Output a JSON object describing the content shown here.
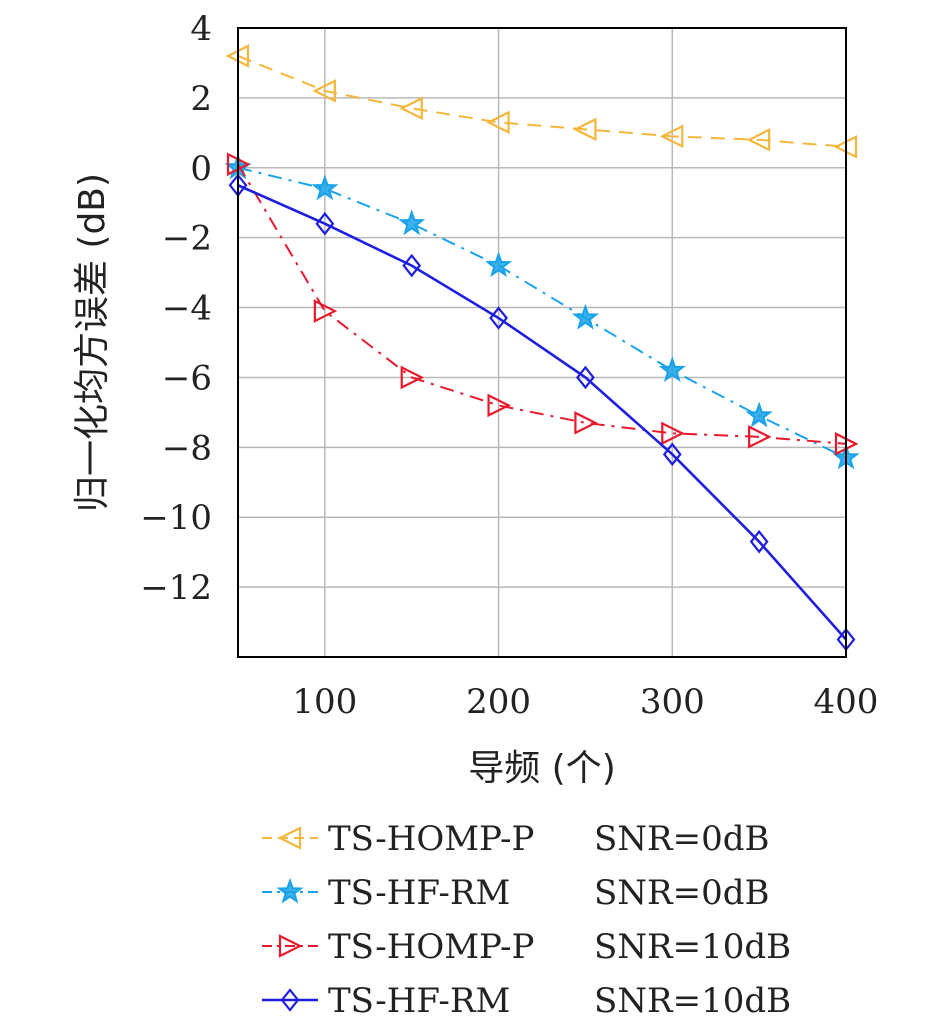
{
  "chart_data": {
    "type": "line",
    "xlabel": "导频 (个)",
    "ylabel": "归一化均方误差 (dB)",
    "xlim": [
      50,
      400
    ],
    "ylim": [
      -14,
      4
    ],
    "xticks": [
      100,
      200,
      300,
      400
    ],
    "yticks": [
      4,
      2,
      0,
      -2,
      -4,
      -6,
      -8,
      -10,
      -12
    ],
    "grid": true,
    "legend_placement": "below",
    "x": [
      50,
      100,
      150,
      200,
      250,
      300,
      350,
      400
    ],
    "series": [
      {
        "name": "TS-HOMP-P",
        "snr": "SNR=0dB",
        "color": "#f5b63c",
        "marker": "triangle-left",
        "line": "dashed",
        "values": [
          3.2,
          2.2,
          1.7,
          1.3,
          1.1,
          0.9,
          0.8,
          0.6
        ]
      },
      {
        "name": "TS-HF-RM",
        "snr": "SNR=0dB",
        "color": "#1aa3e8",
        "marker": "star",
        "line": "dashdot",
        "values": [
          0.0,
          -0.6,
          -1.6,
          -2.8,
          -4.3,
          -5.8,
          -7.1,
          -8.3
        ]
      },
      {
        "name": "TS-HOMP-P",
        "snr": "SNR=10dB",
        "color": "#e8192c",
        "marker": "triangle-right",
        "line": "dashdot",
        "values": [
          0.1,
          -4.1,
          -6.0,
          -6.8,
          -7.3,
          -7.6,
          -7.7,
          -7.9
        ]
      },
      {
        "name": "TS-HF-RM",
        "snr": "SNR=10dB",
        "color": "#1e1ee0",
        "marker": "diamond",
        "line": "solid",
        "values": [
          -0.5,
          -1.6,
          -2.8,
          -4.3,
          -6.0,
          -8.2,
          -10.7,
          -13.5
        ]
      }
    ]
  }
}
